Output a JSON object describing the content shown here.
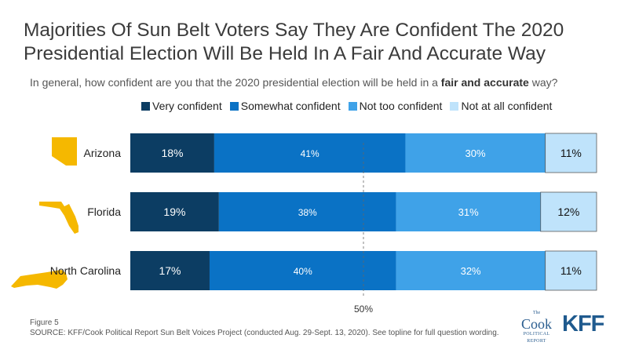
{
  "title": "Majorities Of Sun Belt Voters Say They Are Confident The 2020 Presidential  Election Will Be Held In A Fair And Accurate Way",
  "subtitle": {
    "before": "In general, how confident are you that the 2020 presidential election will be held in a ",
    "bold": "fair and accurate",
    "after": " way?"
  },
  "legend": [
    {
      "label": "Very confident",
      "color": "#0c3d63"
    },
    {
      "label": "Somewhat confident",
      "color": "#0a72c5"
    },
    {
      "label": "Not too confident",
      "color": "#3fa2e8"
    },
    {
      "label": "Not at all confident",
      "color": "#bfe3fb"
    }
  ],
  "chart_data": {
    "type": "bar",
    "orientation": "horizontal",
    "stacked": true,
    "categories": [
      "Arizona",
      "Florida",
      "North Carolina"
    ],
    "series": [
      {
        "name": "Very confident",
        "values": [
          18,
          19,
          17
        ],
        "labels": [
          "18%",
          "19%",
          "17%"
        ]
      },
      {
        "name": "Somewhat confident",
        "values": [
          41,
          38,
          40
        ],
        "labels": [
          "41%",
          "38%",
          "40%"
        ]
      },
      {
        "name": "Not too confident",
        "values": [
          30,
          31,
          32
        ],
        "labels": [
          "30%",
          "31%",
          "32%"
        ]
      },
      {
        "name": "Not at all confident",
        "values": [
          11,
          12,
          11
        ],
        "labels": [
          "11%",
          "12%",
          "11%"
        ]
      }
    ],
    "reference_line": {
      "value": 50,
      "label": "50%"
    },
    "xlim": [
      0,
      100
    ],
    "legend_position": "top"
  },
  "footnote": {
    "figure": "Figure 5",
    "source": "SOURCE: KFF/Cook Political Report Sun Belt Voices Project (conducted Aug. 29-Sept. 13, 2020). See topline for full question wording."
  },
  "logos": {
    "cook_the": "The",
    "cook_name": "Cook",
    "cook_sub1": "POLITICAL",
    "cook_sub2": "REPORT",
    "kff": "KFF"
  },
  "colors": {
    "state_icon": "#f5b800",
    "label_dark_text": "#ffffff",
    "label_light_text": "#111111"
  },
  "state_icons": [
    "arizona-shape-icon",
    "florida-shape-icon",
    "north-carolina-shape-icon"
  ]
}
